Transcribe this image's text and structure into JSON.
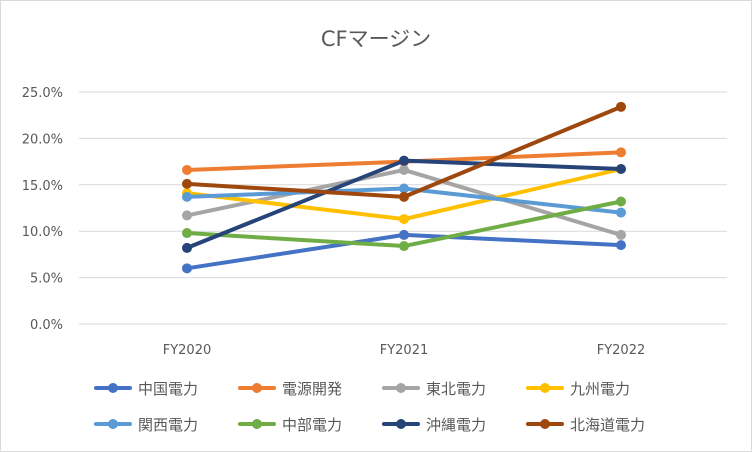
{
  "chart_data": {
    "type": "line",
    "title": "CFマージン",
    "categories": [
      "FY2020",
      "FY2021",
      "FY2022"
    ],
    "ylim": [
      0,
      25
    ],
    "yticks": [
      "0.0%",
      "5.0%",
      "10.0%",
      "15.0%",
      "20.0%",
      "25.0%"
    ],
    "grid": true,
    "legend_position": "bottom",
    "series": [
      {
        "name": "中国電力",
        "color": "#4472C4",
        "values": [
          6.0,
          9.6,
          8.5
        ]
      },
      {
        "name": "電源開発",
        "color": "#ED7D31",
        "values": [
          16.6,
          17.5,
          18.5
        ]
      },
      {
        "name": "東北電力",
        "color": "#A5A5A5",
        "values": [
          11.7,
          16.6,
          9.6
        ]
      },
      {
        "name": "九州電力",
        "color": "#FFC000",
        "values": [
          14.1,
          11.3,
          16.7
        ]
      },
      {
        "name": "関西電力",
        "color": "#5B9BD5",
        "values": [
          13.7,
          14.6,
          12.0
        ]
      },
      {
        "name": "中部電力",
        "color": "#70AD47",
        "values": [
          9.8,
          8.4,
          13.2
        ]
      },
      {
        "name": "沖縄電力",
        "color": "#264478",
        "values": [
          8.2,
          17.6,
          16.7
        ]
      },
      {
        "name": "北海道電力",
        "color": "#9E480E",
        "values": [
          15.1,
          13.7,
          23.4
        ]
      }
    ]
  }
}
